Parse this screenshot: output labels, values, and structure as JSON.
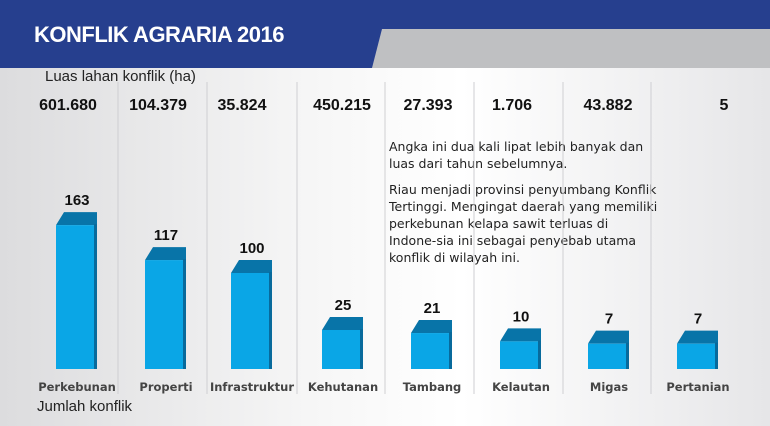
{
  "title": "KONFLIK AGRARIA 2016",
  "notes": [
    "Angka ini dua kali lipat lebih banyak dan luas dari tahun sebelumnya.",
    "Riau menjadi provinsi penyumbang Konflik Tertinggi. Mengingat daerah yang memiliki perkebunan kelapa sawit terluas di Indone-sia ini sebagai penyebab utama konflik di wilayah ini."
  ],
  "chart_data": {
    "type": "bar",
    "title": "KONFLIK AGRARIA 2016",
    "area_label": "Luas lahan konflik (ha)",
    "ylabel": "Jumlah konflik",
    "categories": [
      "Perkebunan",
      "Properti",
      "Infrastruktur",
      "Kehutanan",
      "Tambang",
      "Kelautan",
      "Migas",
      "Pertanian"
    ],
    "values": [
      163,
      117,
      100,
      25,
      21,
      10,
      7,
      7
    ],
    "area_ha": [
      "601.680",
      "104.379",
      "35.824",
      "450.215",
      "27.393",
      "1.706",
      "43.882",
      "5"
    ],
    "colors": {
      "bar_front": "#0aa6e6",
      "bar_top": "#0874a8",
      "bar_side": "#086a9c",
      "header": "#263f8e"
    }
  }
}
